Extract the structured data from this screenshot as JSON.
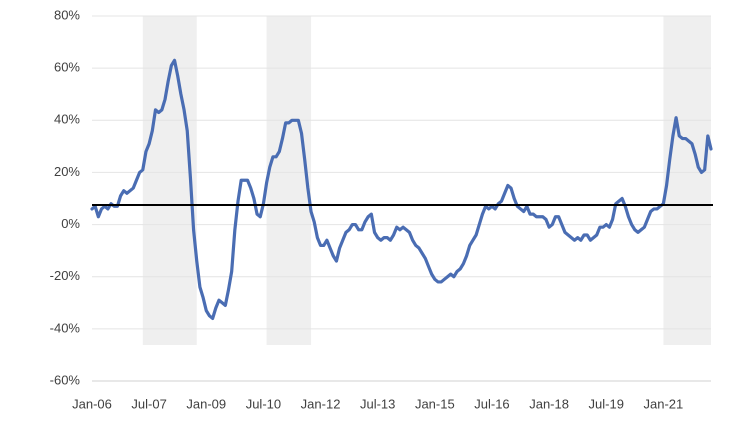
{
  "chart_data": {
    "type": "line",
    "categories": [
      "Jan-06",
      null,
      null,
      null,
      null,
      null,
      null,
      null,
      null,
      null,
      null,
      null,
      null,
      null,
      null,
      null,
      null,
      null,
      "Jul-07",
      null,
      null,
      null,
      null,
      null,
      null,
      null,
      null,
      null,
      null,
      null,
      null,
      null,
      null,
      null,
      null,
      null,
      "Jan-09",
      null,
      null,
      null,
      null,
      null,
      null,
      null,
      null,
      null,
      null,
      null,
      null,
      null,
      null,
      null,
      null,
      null,
      "Jul-10",
      null,
      null,
      null,
      null,
      null,
      null,
      null,
      null,
      null,
      null,
      null,
      null,
      null,
      null,
      null,
      null,
      null,
      "Jan-12",
      null,
      null,
      null,
      null,
      null,
      null,
      null,
      null,
      null,
      null,
      null,
      null,
      null,
      null,
      null,
      null,
      null,
      "Jul-13",
      null,
      null,
      null,
      null,
      null,
      null,
      null,
      null,
      null,
      null,
      null,
      null,
      null,
      null,
      null,
      null,
      null,
      "Jan-15",
      null,
      null,
      null,
      null,
      null,
      null,
      null,
      null,
      null,
      null,
      null,
      null,
      null,
      null,
      null,
      null,
      null,
      "Jul-16",
      null,
      null,
      null,
      null,
      null,
      null,
      null,
      null,
      null,
      null,
      null,
      null,
      null,
      null,
      null,
      null,
      null,
      "Jan-18",
      null,
      null,
      null,
      null,
      null,
      null,
      null,
      null,
      null,
      null,
      null,
      null,
      null,
      null,
      null,
      null,
      null,
      "Jul-19",
      null,
      null,
      null,
      null,
      null,
      null,
      null,
      null,
      null,
      null,
      null,
      null,
      null,
      null,
      null,
      null,
      null,
      "Jan-21",
      null,
      null,
      null,
      null,
      null,
      null,
      null,
      null,
      null,
      null,
      null,
      null,
      null,
      null,
      null
    ],
    "values": [
      6,
      7,
      3,
      6,
      7,
      6,
      8,
      7,
      7,
      11,
      13,
      12,
      13,
      14,
      17,
      20,
      21,
      28,
      31,
      36,
      44,
      43,
      44,
      48,
      55,
      61,
      63,
      57,
      50,
      44,
      36,
      18,
      -2,
      -14,
      -24,
      -28,
      -33,
      -35,
      -36,
      -32,
      -29,
      -30,
      -31,
      -25,
      -18,
      -2,
      9,
      17,
      17,
      17,
      14,
      10,
      4,
      3,
      8,
      16,
      22,
      26,
      26,
      28,
      33,
      39,
      39,
      40,
      40,
      40,
      35,
      25,
      14,
      5,
      1,
      -5,
      -8,
      -8,
      -6,
      -9,
      -12,
      -14,
      -9,
      -6,
      -3,
      -2,
      0,
      0,
      -2,
      -2,
      1,
      3,
      4,
      -3,
      -5,
      -6,
      -5,
      -5,
      -6,
      -4,
      -1,
      -2,
      -1,
      -2,
      -3,
      -6,
      -8,
      -9,
      -11,
      -13,
      -16,
      -19,
      -21,
      -22,
      -22,
      -21,
      -20,
      -19,
      -20,
      -18,
      -17,
      -15,
      -12,
      -8,
      -6,
      -4,
      0,
      4,
      7,
      6,
      7,
      6,
      8,
      9,
      12,
      15,
      14,
      10,
      7,
      6,
      5,
      7,
      4,
      4,
      3,
      3,
      3,
      2,
      -1,
      0,
      3,
      3,
      0,
      -3,
      -4,
      -5,
      -6,
      -5,
      -6,
      -4,
      -4,
      -6,
      -5,
      -4,
      -1,
      -1,
      0,
      -1,
      2,
      8,
      9,
      10,
      7,
      3,
      0,
      -2,
      -3,
      -2,
      -1,
      2,
      5,
      6,
      6,
      7,
      8,
      15,
      25,
      34,
      41,
      34,
      33,
      33,
      32,
      31,
      27,
      22,
      20,
      21,
      34,
      29
    ],
    "color": "#4a6db3",
    "ylim": [
      -60,
      80
    ],
    "yticks": [
      {
        "value": -60,
        "label": "-60%"
      },
      {
        "value": -40,
        "label": "-40%"
      },
      {
        "value": -20,
        "label": "-20%"
      },
      {
        "value": 0,
        "label": "0%"
      },
      {
        "value": 20,
        "label": "20%"
      },
      {
        "value": 40,
        "label": "40%"
      },
      {
        "value": 60,
        "label": "60%"
      },
      {
        "value": 80,
        "label": "80%"
      }
    ],
    "grid": true,
    "reference_line": 7.5,
    "shaded_periods": [
      [
        16,
        33
      ],
      [
        55,
        69
      ],
      [
        180,
        195
      ]
    ]
  }
}
